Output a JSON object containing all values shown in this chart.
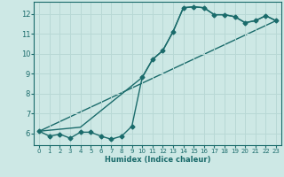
{
  "xlabel": "Humidex (Indice chaleur)",
  "xlim": [
    -0.5,
    23.5
  ],
  "ylim": [
    5.4,
    12.6
  ],
  "yticks": [
    6,
    7,
    8,
    9,
    10,
    11,
    12
  ],
  "xticks": [
    0,
    1,
    2,
    3,
    4,
    5,
    6,
    7,
    8,
    9,
    10,
    11,
    12,
    13,
    14,
    15,
    16,
    17,
    18,
    19,
    20,
    21,
    22,
    23
  ],
  "bg_color": "#cde8e5",
  "grid_color": "#b8d8d5",
  "line_color": "#1a6b6b",
  "line1_x": [
    0,
    1,
    2,
    3,
    4,
    5,
    6,
    7,
    8,
    9,
    10,
    11,
    12,
    13,
    14,
    15,
    16,
    17,
    18,
    19,
    20,
    21,
    22,
    23
  ],
  "line1_y": [
    6.1,
    5.85,
    5.95,
    5.75,
    6.05,
    6.05,
    5.85,
    5.7,
    5.85,
    6.35,
    8.8,
    9.7,
    10.15,
    11.1,
    12.3,
    12.35,
    12.3,
    11.95,
    11.95,
    11.85,
    11.55,
    11.65,
    11.9,
    11.65
  ],
  "line2_x": [
    0,
    4,
    10,
    11,
    12,
    13,
    14,
    15,
    16,
    17,
    18,
    19,
    20,
    21,
    22,
    23
  ],
  "line2_y": [
    6.1,
    6.3,
    8.8,
    9.7,
    10.15,
    11.1,
    12.3,
    12.35,
    12.3,
    11.95,
    11.95,
    11.85,
    11.55,
    11.65,
    11.9,
    11.65
  ],
  "line3_x": [
    0,
    23
  ],
  "line3_y": [
    6.1,
    11.65
  ],
  "marker_size": 2.5,
  "linewidth": 1.0
}
